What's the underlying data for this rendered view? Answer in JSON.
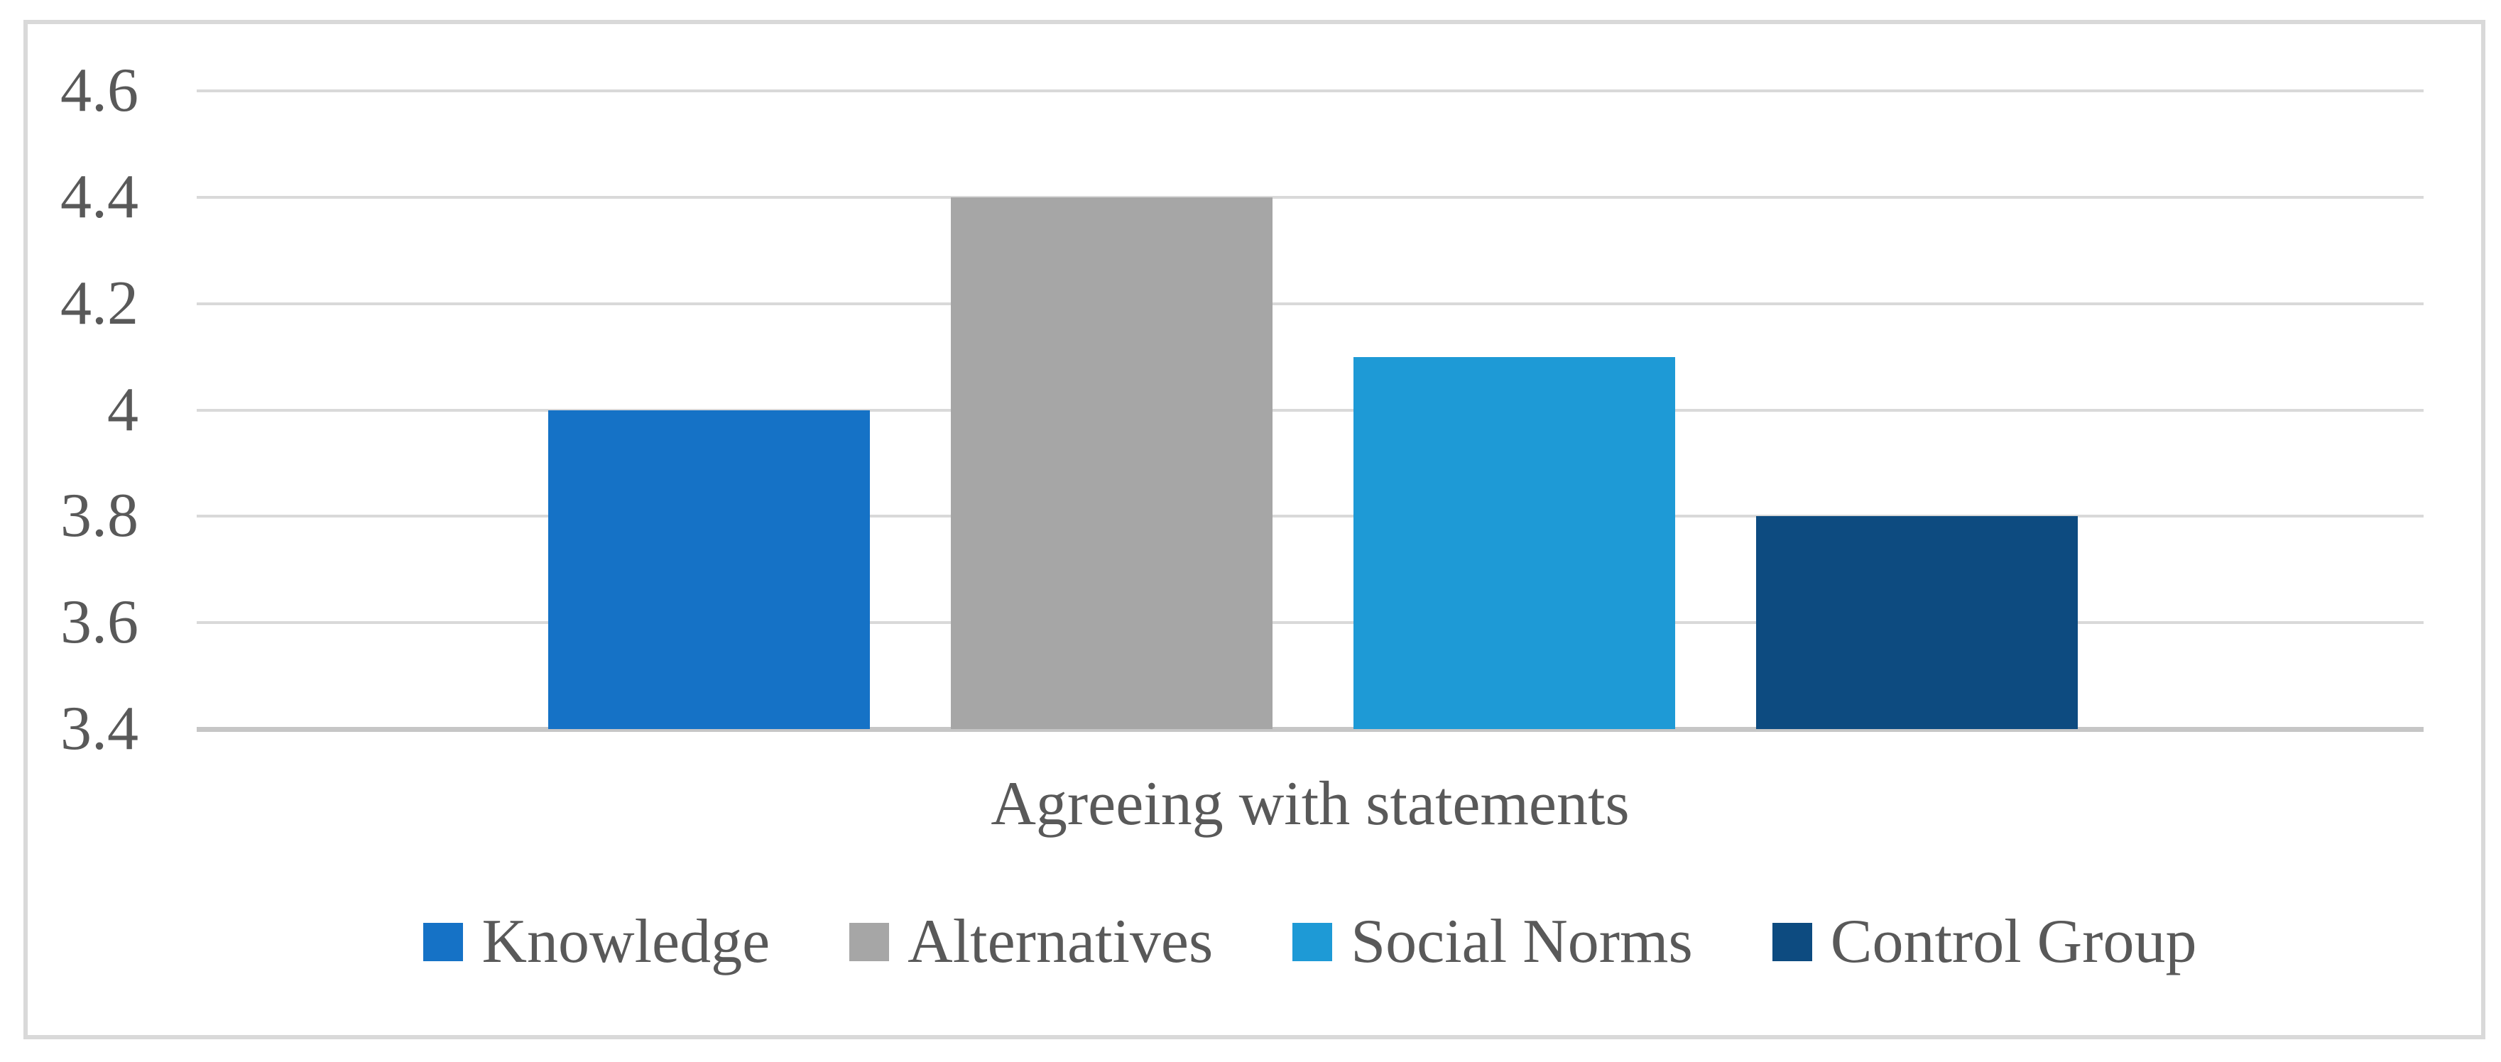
{
  "chart_data": {
    "type": "bar",
    "title": "",
    "xlabel": "Agreeing with statements",
    "ylabel": "",
    "ylim": [
      3.4,
      4.6
    ],
    "yticks": [
      3.4,
      3.6,
      3.8,
      4.0,
      4.2,
      4.4,
      4.6
    ],
    "ytick_labels": [
      "3.4",
      "3.6",
      "3.8",
      "4",
      "4.2",
      "4.4",
      "4.6"
    ],
    "grid": true,
    "legend_position": "bottom",
    "categories": [
      "Knowledge",
      "Alternatives",
      "Social Norms",
      "Control Group"
    ],
    "values": [
      4.0,
      4.4,
      4.1,
      3.8
    ],
    "bar_colors": [
      "#1572C6",
      "#A6A6A6",
      "#1E9AD6",
      "#0D4B80"
    ],
    "style": {
      "text_color": "#595959",
      "grid_color": "#D9D9D9",
      "axis_line_color": "#C6C6C6",
      "border_color": "#D9D9D9",
      "background_color": "#FFFFFF"
    }
  }
}
